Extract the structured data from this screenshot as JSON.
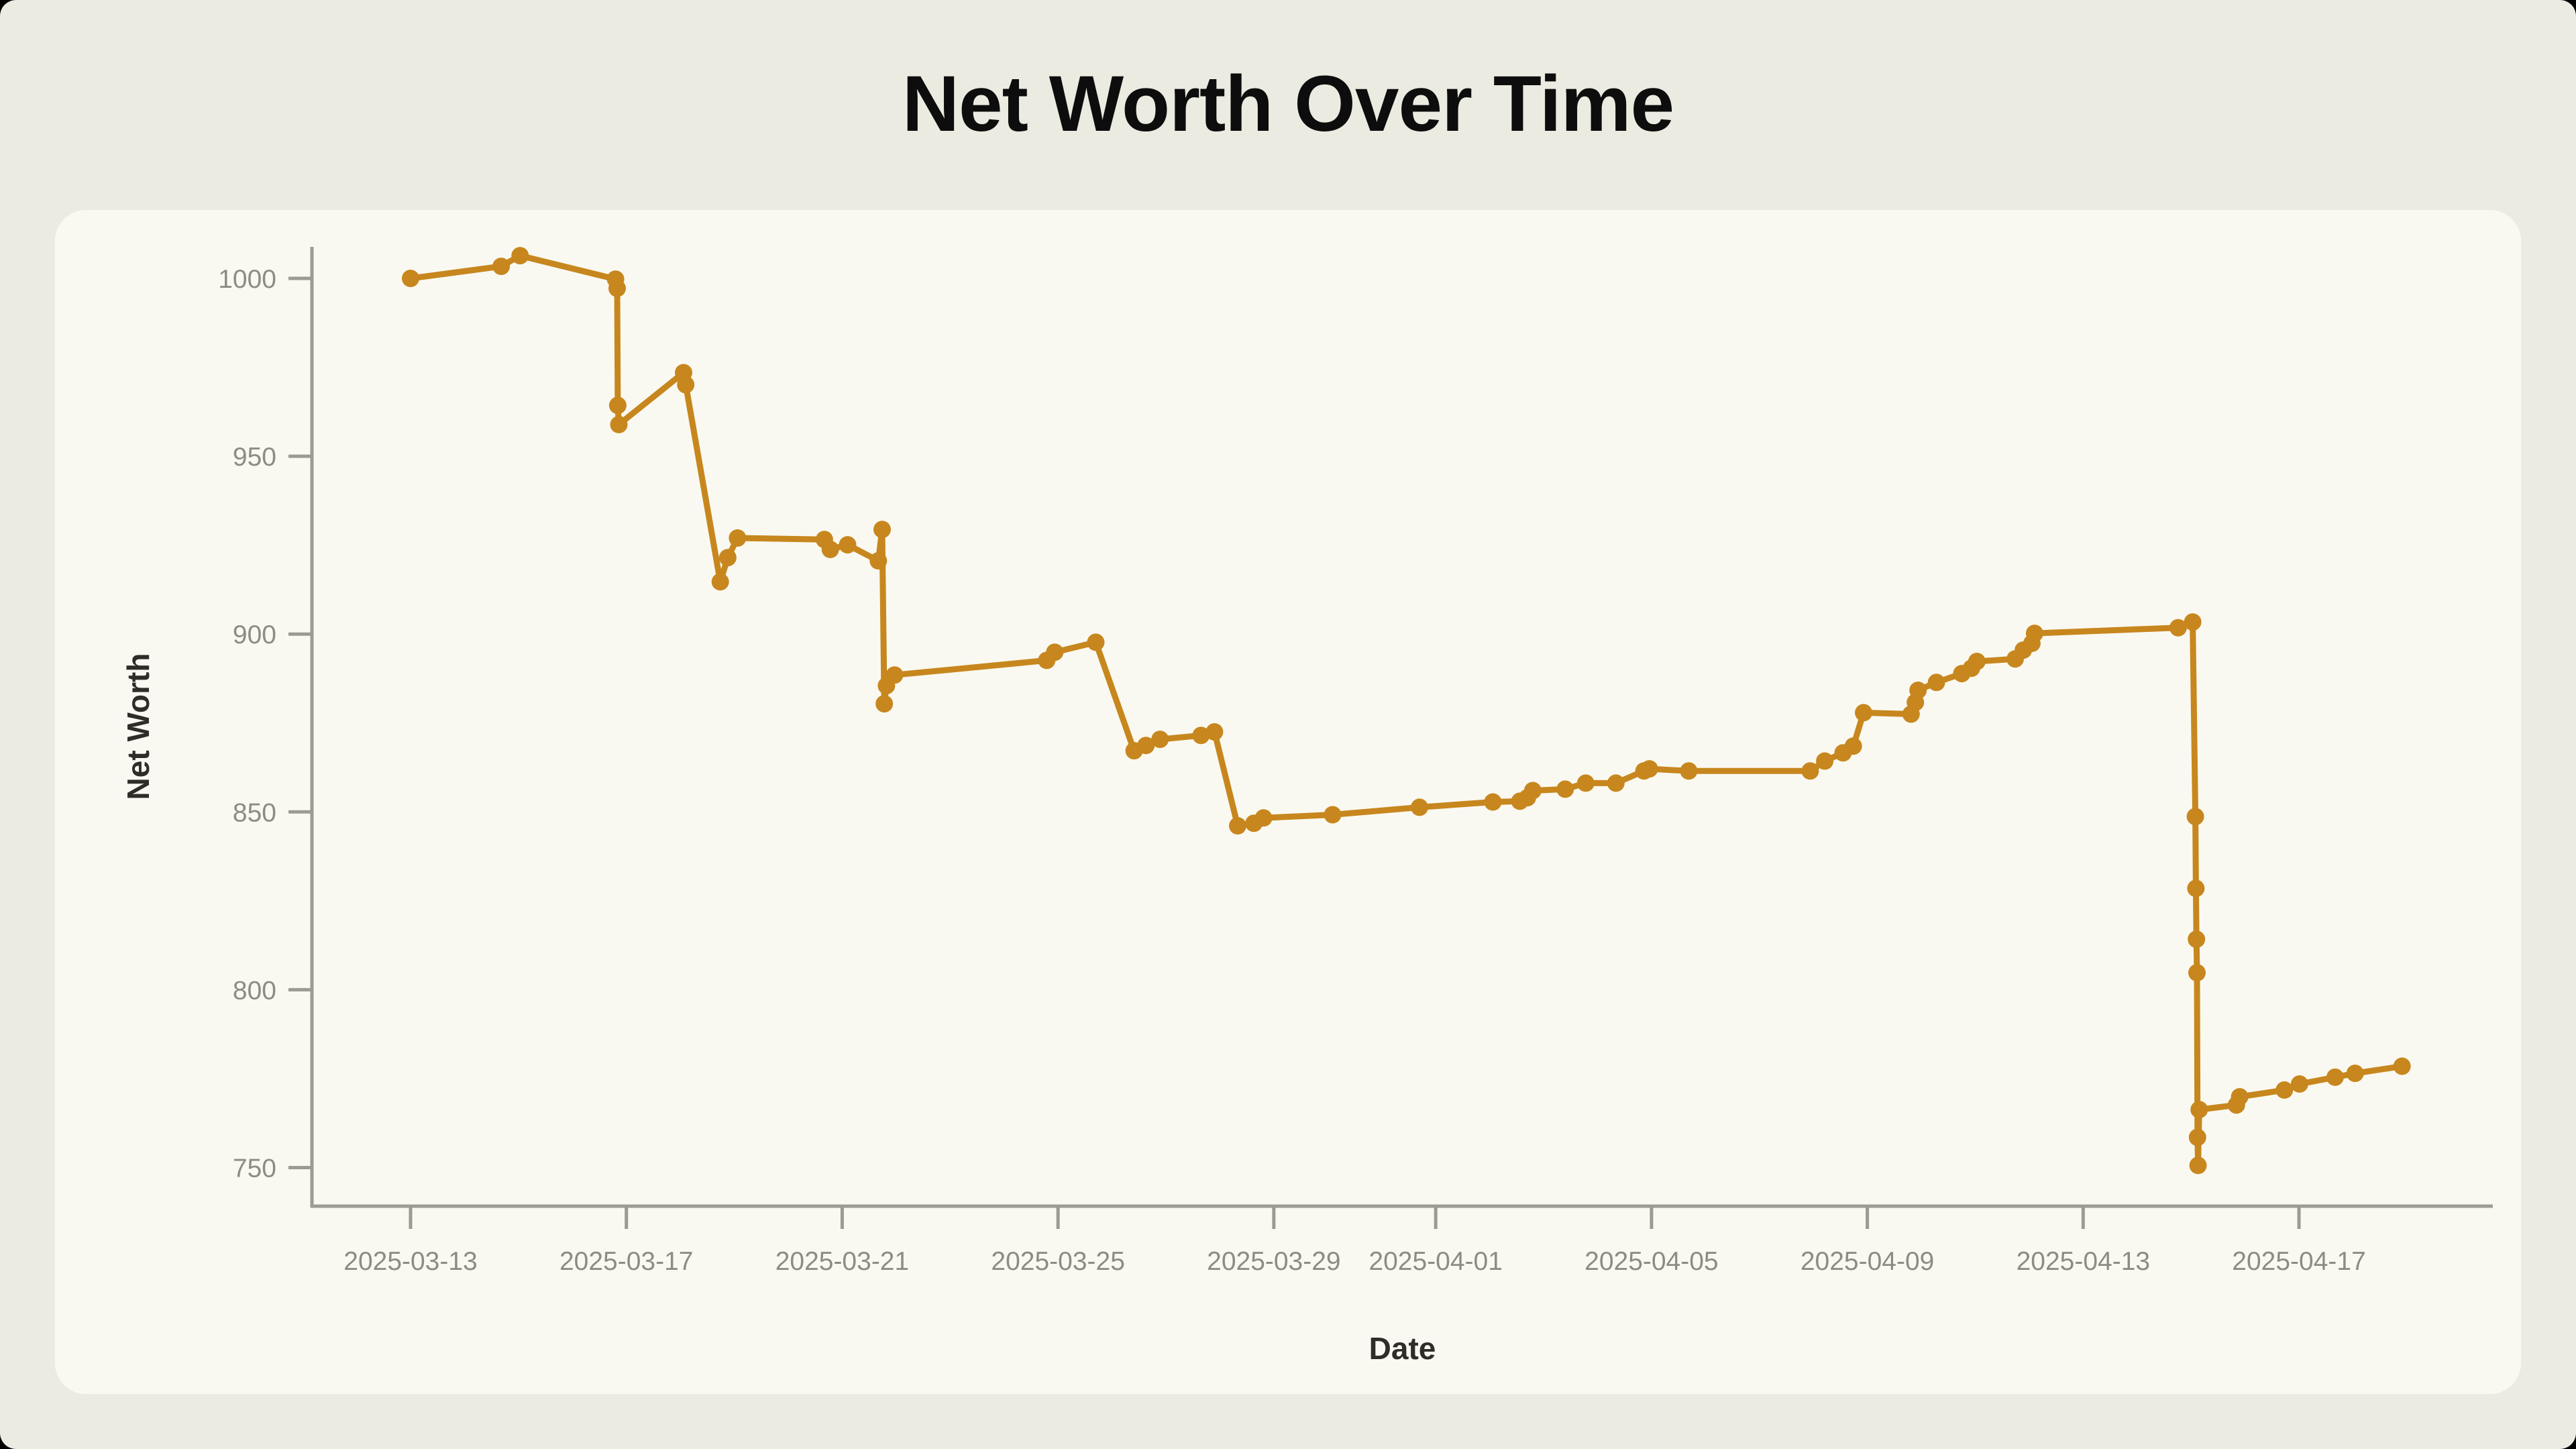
{
  "page": {
    "title": "Net Worth Over Time"
  },
  "chart_data": {
    "type": "line",
    "title": "Net Worth Over Time",
    "xlabel": "Date",
    "ylabel": "Net Worth",
    "grid": false,
    "legend": false,
    "x_axis": {
      "start_date": "2025-03-13",
      "unit": "days since 2025-03-13 (fractional = time of day)",
      "ticks": [
        {
          "day": 0,
          "label": "2025-03-13"
        },
        {
          "day": 4,
          "label": "2025-03-17"
        },
        {
          "day": 8,
          "label": "2025-03-21"
        },
        {
          "day": 12,
          "label": "2025-03-25"
        },
        {
          "day": 16,
          "label": "2025-03-29"
        },
        {
          "day": 19,
          "label": "2025-04-01"
        },
        {
          "day": 23,
          "label": "2025-04-05"
        },
        {
          "day": 27,
          "label": "2025-04-09"
        },
        {
          "day": 31,
          "label": "2025-04-13"
        },
        {
          "day": 35,
          "label": "2025-04-17"
        }
      ]
    },
    "y_axis": {
      "ticks": [
        750,
        800,
        850,
        900,
        950,
        1000
      ],
      "range": [
        739,
        1008
      ]
    },
    "series": [
      {
        "name": "Net Worth",
        "points": [
          [
            0.0,
            1000
          ],
          [
            1.68,
            1003.4
          ],
          [
            2.03,
            1006.4
          ],
          [
            3.8,
            999.8
          ],
          [
            3.83,
            997.2
          ],
          [
            3.84,
            964.3
          ],
          [
            3.86,
            958.9
          ],
          [
            5.06,
            973.5
          ],
          [
            5.1,
            970.1
          ],
          [
            5.74,
            914.7
          ],
          [
            5.88,
            921.5
          ],
          [
            6.06,
            927.0
          ],
          [
            7.67,
            926.6
          ],
          [
            7.78,
            923.8
          ],
          [
            8.1,
            925.1
          ],
          [
            8.67,
            920.6
          ],
          [
            8.74,
            929.4
          ],
          [
            8.78,
            880.4
          ],
          [
            8.82,
            885.5
          ],
          [
            8.97,
            888.5
          ],
          [
            11.79,
            892.6
          ],
          [
            11.94,
            894.9
          ],
          [
            12.7,
            897.7
          ],
          [
            13.41,
            867.2
          ],
          [
            13.63,
            868.7
          ],
          [
            13.89,
            870.4
          ],
          [
            14.65,
            871.5
          ],
          [
            14.9,
            872.5
          ],
          [
            15.33,
            846.1
          ],
          [
            15.63,
            846.8
          ],
          [
            15.81,
            848.3
          ],
          [
            17.09,
            849.2
          ],
          [
            18.7,
            851.3
          ],
          [
            20.06,
            852.8
          ],
          [
            20.56,
            853.0
          ],
          [
            20.7,
            854.0
          ],
          [
            20.8,
            856.0
          ],
          [
            21.4,
            856.4
          ],
          [
            21.78,
            858.1
          ],
          [
            22.34,
            858.1
          ],
          [
            22.86,
            861.5
          ],
          [
            22.96,
            862.1
          ],
          [
            23.69,
            861.5
          ],
          [
            25.94,
            861.5
          ],
          [
            26.21,
            864.3
          ],
          [
            26.55,
            866.6
          ],
          [
            26.74,
            868.5
          ],
          [
            26.93,
            877.9
          ],
          [
            27.81,
            877.5
          ],
          [
            27.89,
            880.8
          ],
          [
            27.94,
            884.2
          ],
          [
            28.28,
            886.4
          ],
          [
            28.75,
            888.9
          ],
          [
            28.93,
            890.4
          ],
          [
            29.03,
            892.3
          ],
          [
            29.74,
            893.0
          ],
          [
            29.89,
            895.5
          ],
          [
            30.05,
            897.4
          ],
          [
            30.1,
            900.2
          ],
          [
            32.76,
            901.8
          ],
          [
            33.03,
            903.4
          ],
          [
            33.08,
            848.7
          ],
          [
            33.09,
            828.5
          ],
          [
            33.1,
            814.2
          ],
          [
            33.11,
            804.8
          ],
          [
            33.12,
            758.5
          ],
          [
            33.13,
            750.6
          ],
          [
            33.15,
            766.3
          ],
          [
            33.84,
            767.6
          ],
          [
            33.9,
            769.9
          ],
          [
            34.73,
            771.8
          ],
          [
            35.01,
            773.5
          ],
          [
            35.67,
            775.4
          ],
          [
            36.04,
            776.5
          ],
          [
            36.91,
            778.5
          ]
        ]
      }
    ]
  },
  "style": {
    "accent": "#C7871E",
    "page_bg": "#ECEBE1",
    "card_bg": "#FAF9F1",
    "axis_color": "#9B9B92",
    "tick_label_color": "#8C8C84",
    "axis_label_color": "#2E2D28",
    "title_color": "#0D0D0D"
  }
}
